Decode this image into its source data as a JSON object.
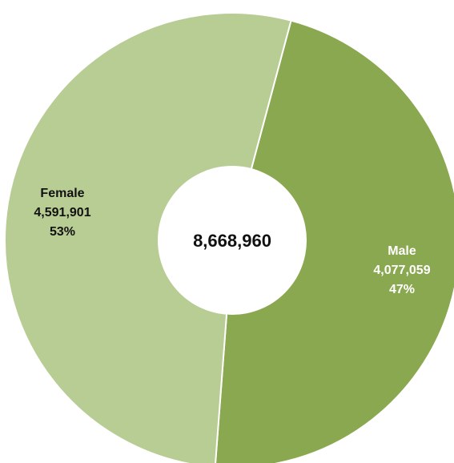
{
  "chart_data": {
    "type": "pie",
    "style": "donut",
    "title": "",
    "legend": "none",
    "total_label": "8,668,960",
    "slices": [
      {
        "name": "Male",
        "value": 4077059,
        "value_label": "4,077,059",
        "percent_label": "47%",
        "color": "#8aa84f",
        "label_color": "#ffffff"
      },
      {
        "name": "Female",
        "value": 4591901,
        "value_label": "4,591,901",
        "percent_label": "53%",
        "color": "#b8cd93",
        "label_color": "#111111"
      }
    ]
  }
}
